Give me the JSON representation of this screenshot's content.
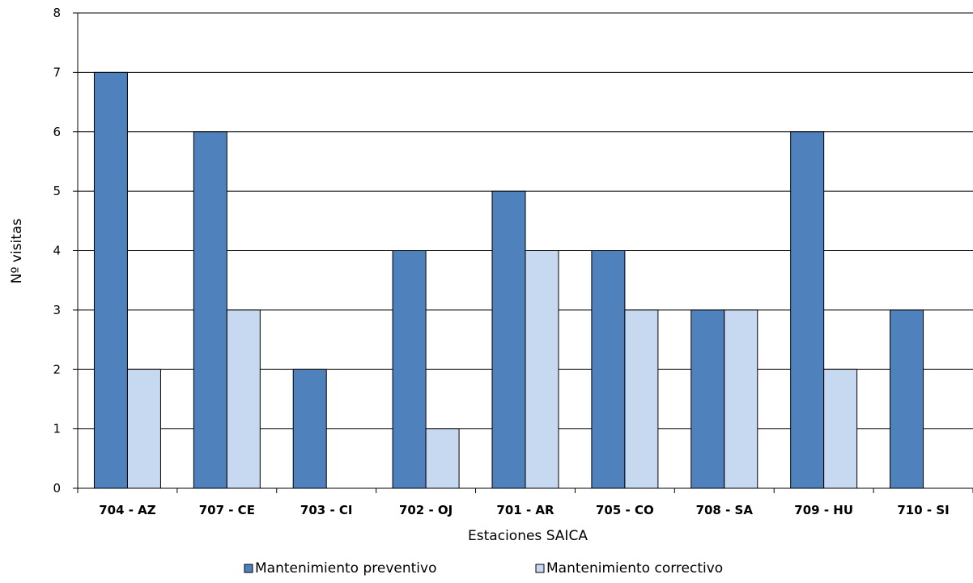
{
  "chart_data": {
    "type": "bar",
    "title": "",
    "xlabel": "Estaciones SAICA",
    "ylabel": "Nº visitas",
    "ylim": [
      0,
      8
    ],
    "yticks": [
      0,
      1,
      2,
      3,
      4,
      5,
      6,
      7,
      8
    ],
    "grid": true,
    "legend_position": "bottom",
    "categories": [
      "704 - AZ",
      "707 - CE",
      "703 - CI",
      "702 - OJ",
      "701 - AR",
      "705 - CO",
      "708 - SA",
      "709 - HU",
      "710 - SI"
    ],
    "series": [
      {
        "name": "Mantenimiento preventivo",
        "color": "#4F81BD",
        "values": [
          7,
          6,
          2,
          4,
          5,
          4,
          3,
          6,
          3
        ]
      },
      {
        "name": "Mantenimiento correctivo",
        "color": "#C6D9F1",
        "values": [
          2,
          3,
          0,
          1,
          4,
          3,
          3,
          2,
          0
        ]
      }
    ]
  }
}
